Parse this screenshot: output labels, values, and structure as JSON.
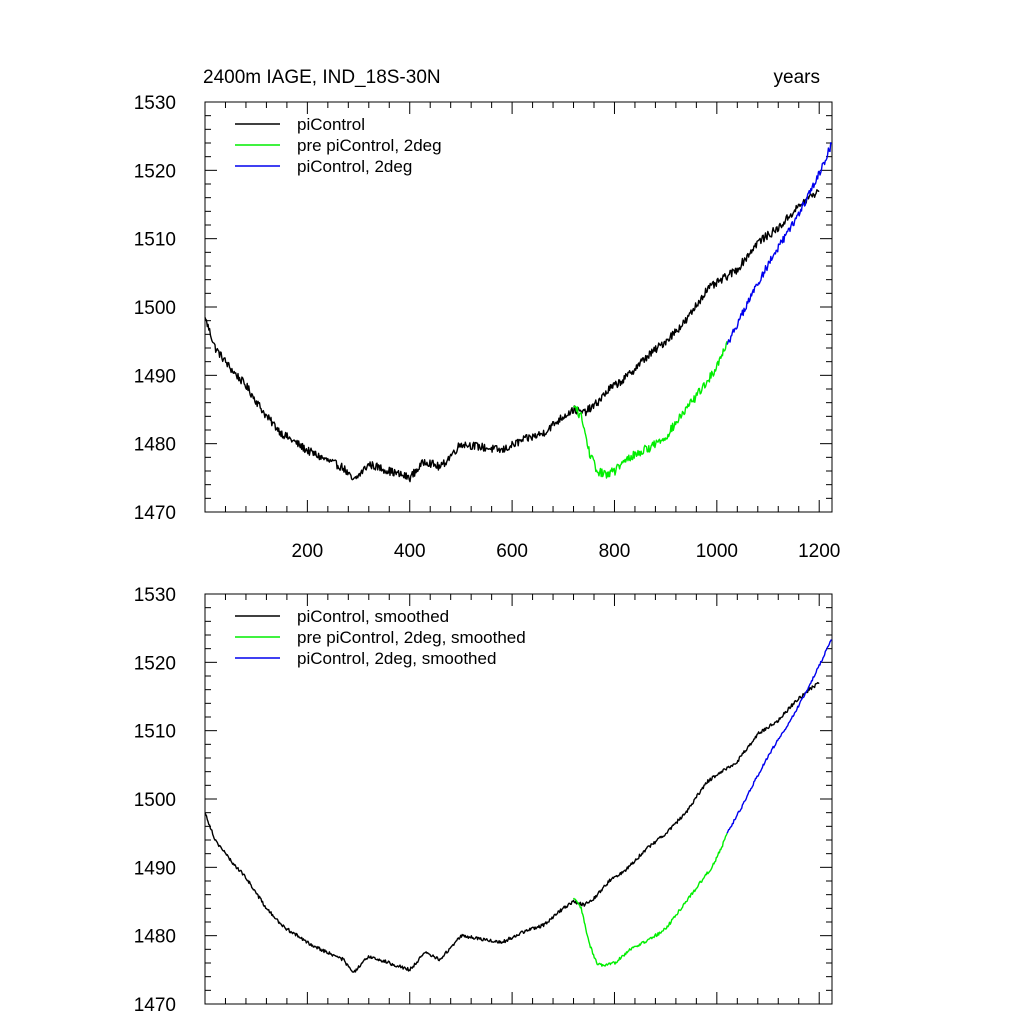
{
  "figure": {
    "title_left": "2400m IAGE, IND_18S-30N",
    "title_right": "years"
  },
  "chart_data": [
    {
      "type": "line",
      "xlim": [
        0,
        1225
      ],
      "ylim": [
        1470,
        1530
      ],
      "xticks": [
        200,
        400,
        600,
        800,
        1000,
        1200
      ],
      "xtick_labels": [
        "200",
        "400",
        "600",
        "800",
        "1000",
        "1200"
      ],
      "yticks": [
        1470,
        1480,
        1490,
        1500,
        1510,
        1520,
        1530
      ],
      "ytick_labels": [
        "1470",
        "1480",
        "1490",
        "1500",
        "1510",
        "1520",
        "1530"
      ],
      "show_xtick_labels": true,
      "legend_position": "top-left",
      "series": [
        {
          "name": "piControl",
          "color": "#000000",
          "noise": 0.6,
          "x": [
            0,
            20,
            50,
            80,
            120,
            150,
            200,
            240,
            270,
            290,
            320,
            360,
            400,
            430,
            460,
            500,
            540,
            580,
            620,
            660,
            700,
            720,
            740,
            760,
            790,
            820,
            860,
            900,
            940,
            980,
            1000,
            1040,
            1080,
            1120,
            1150,
            1180,
            1200
          ],
          "y": [
            1498.5,
            1494,
            1491,
            1488.5,
            1484,
            1481.5,
            1479,
            1477.5,
            1476.5,
            1474.5,
            1477,
            1476,
            1475,
            1477.5,
            1476.5,
            1480,
            1479.5,
            1479,
            1480.5,
            1481.5,
            1484,
            1485,
            1484.5,
            1485.5,
            1488,
            1489.5,
            1492.5,
            1495,
            1498,
            1502.5,
            1503.5,
            1505.5,
            1509.5,
            1511.5,
            1514,
            1516,
            1517
          ]
        },
        {
          "name": "pre piControl, 2deg",
          "color": "#00ee00",
          "noise": 0.65,
          "x": [
            720,
            735,
            750,
            765,
            780,
            800,
            830,
            870,
            900,
            930,
            960,
            990,
            1010,
            1020
          ],
          "y": [
            1485.5,
            1484,
            1479,
            1476,
            1475.5,
            1476,
            1478,
            1479.5,
            1481,
            1484,
            1487,
            1490,
            1493,
            1495
          ]
        },
        {
          "name": "piControl, 2deg",
          "color": "#0000ee",
          "noise": 0.55,
          "x": [
            1020,
            1050,
            1080,
            1110,
            1140,
            1170,
            1200,
            1225
          ],
          "y": [
            1494.5,
            1499,
            1503.5,
            1507.5,
            1511,
            1515,
            1519.5,
            1524
          ]
        }
      ]
    },
    {
      "type": "line",
      "xlim": [
        0,
        1225
      ],
      "ylim": [
        1470,
        1530
      ],
      "xticks": [
        200,
        400,
        600,
        800,
        1000,
        1200
      ],
      "xtick_labels": [],
      "yticks": [
        1470,
        1480,
        1490,
        1500,
        1510,
        1520,
        1530
      ],
      "ytick_labels": [
        "1470",
        "1480",
        "1490",
        "1500",
        "1510",
        "1520",
        "1530"
      ],
      "show_xtick_labels": false,
      "legend_position": "top-left",
      "series": [
        {
          "name": "piControl, smoothed",
          "color": "#000000",
          "noise": 0.25,
          "x": [
            0,
            20,
            50,
            80,
            120,
            150,
            200,
            240,
            270,
            290,
            320,
            360,
            400,
            430,
            460,
            500,
            540,
            580,
            620,
            660,
            700,
            720,
            740,
            760,
            790,
            820,
            860,
            900,
            940,
            980,
            1000,
            1040,
            1080,
            1120,
            1150,
            1180,
            1200
          ],
          "y": [
            1498,
            1494,
            1491,
            1488.5,
            1484,
            1481.5,
            1479,
            1477.5,
            1476.5,
            1474.5,
            1477,
            1476,
            1475,
            1477.5,
            1476.5,
            1480,
            1479.5,
            1479,
            1480.5,
            1481.5,
            1484,
            1485,
            1484.5,
            1485.5,
            1488,
            1489.5,
            1492.5,
            1495,
            1498,
            1502.5,
            1503.5,
            1505.5,
            1509.5,
            1511.5,
            1514,
            1516,
            1517
          ]
        },
        {
          "name": "pre piControl, 2deg, smoothed",
          "color": "#00ee00",
          "noise": 0.25,
          "x": [
            720,
            735,
            750,
            765,
            780,
            800,
            830,
            870,
            900,
            930,
            960,
            990,
            1010,
            1020
          ],
          "y": [
            1485.5,
            1484,
            1479,
            1476,
            1475.5,
            1476,
            1478,
            1479.5,
            1481,
            1484,
            1487,
            1490,
            1493,
            1495
          ]
        },
        {
          "name": "piControl, 2deg, smoothed",
          "color": "#0000ee",
          "noise": 0.2,
          "x": [
            1020,
            1050,
            1080,
            1110,
            1140,
            1170,
            1200,
            1225
          ],
          "y": [
            1495,
            1499,
            1503.5,
            1507.5,
            1511,
            1515,
            1519.5,
            1523.5
          ]
        }
      ]
    }
  ]
}
